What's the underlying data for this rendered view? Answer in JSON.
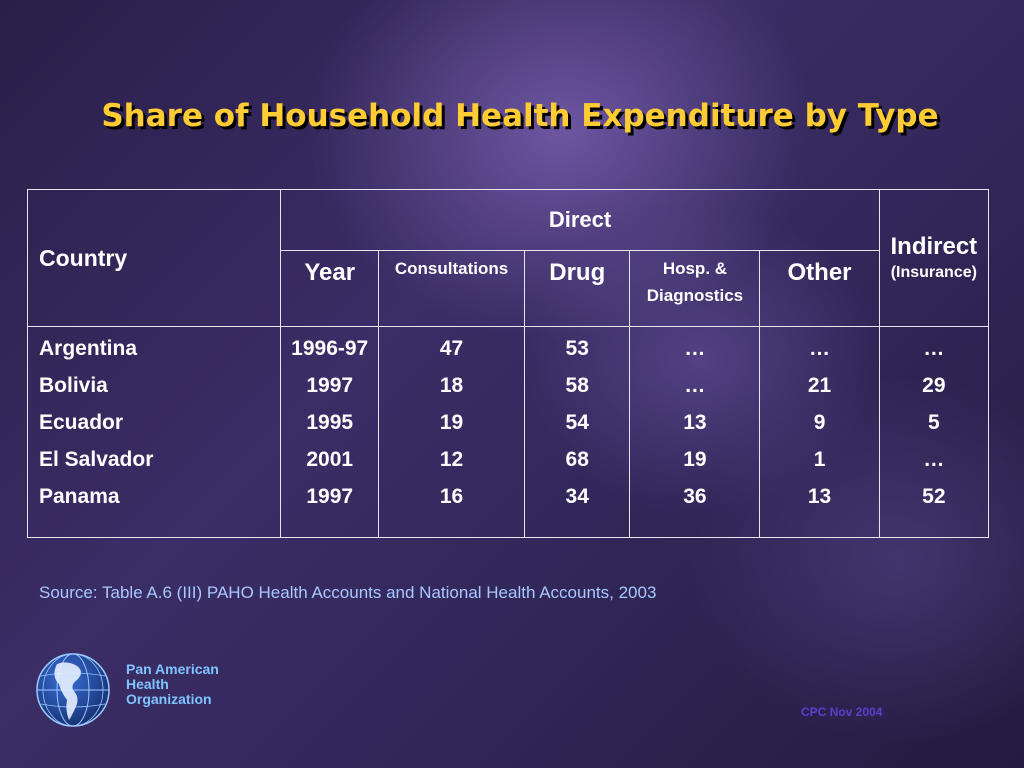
{
  "title": "Share of Household Health Expenditure by Type",
  "table": {
    "header": {
      "country": "Country",
      "direct": "Direct",
      "indirect": "Indirect",
      "indirect_sub": "(Insurance)",
      "year": "Year",
      "consultations": "Consultations",
      "drug": "Drug",
      "hosp_line1": "Hosp. &",
      "hosp_line2": "Diagnostics",
      "other": "Other"
    },
    "rows": [
      {
        "country": "Argentina",
        "year": "1996-97",
        "consultations": "47",
        "drug": "53",
        "hosp": "…",
        "other": "…",
        "indirect": "…"
      },
      {
        "country": "Bolivia",
        "year": "1997",
        "consultations": "18",
        "drug": "58",
        "hosp": "…",
        "other": "21",
        "indirect": "29"
      },
      {
        "country": "Ecuador",
        "year": "1995",
        "consultations": "19",
        "drug": "54",
        "hosp": "13",
        "other": "9",
        "indirect": "5"
      },
      {
        "country": "El Salvador",
        "year": "2001",
        "consultations": "12",
        "drug": "68",
        "hosp": "19",
        "other": "1",
        "indirect": "…"
      },
      {
        "country": "Panama",
        "year": "1997",
        "consultations": "16",
        "drug": "34",
        "hosp": "36",
        "other": "13",
        "indirect": "52"
      }
    ]
  },
  "source": "Source: Table A.6 (III) PAHO Health Accounts and National Health Accounts, 2003",
  "org": {
    "line1": "Pan American",
    "line2": "Health",
    "line3": "Organization"
  },
  "footer": "CPC Nov 2004",
  "logo_icon": "globe-icon",
  "colors": {
    "title": "#ffcc33",
    "source": "#a9c8ff",
    "org": "#7fc4ff",
    "footer": "#5a3fd0"
  }
}
